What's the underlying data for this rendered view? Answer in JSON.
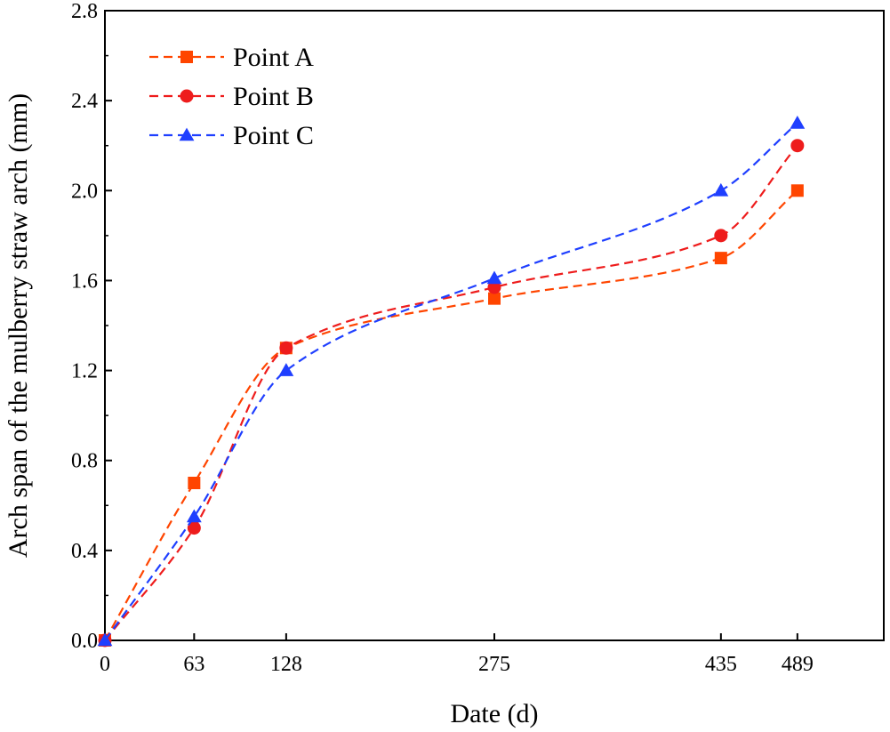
{
  "chart_data": {
    "type": "line",
    "title": "",
    "xlabel": "Date (d)",
    "ylabel": "Arch span of the mulberry straw arch  (mm)",
    "x": [
      0,
      63,
      128,
      275,
      435,
      489
    ],
    "xticks": [
      "0",
      "63",
      "128",
      "275",
      "435",
      "489"
    ],
    "xlim": [
      0,
      550
    ],
    "ylim": [
      0.0,
      2.8
    ],
    "yticks": [
      "0.0",
      "0.4",
      "0.8",
      "1.2",
      "1.6",
      "2.0",
      "2.4",
      "2.8"
    ],
    "grid": false,
    "legend_position": "top-left",
    "series": [
      {
        "name": "Point A",
        "marker": "square",
        "color": "#ff4500",
        "values": [
          0.0,
          0.7,
          1.3,
          1.52,
          1.7,
          2.0
        ]
      },
      {
        "name": "Point B",
        "marker": "circle",
        "color": "#ee1c1c",
        "values": [
          0.0,
          0.5,
          1.3,
          1.57,
          1.8,
          2.2
        ]
      },
      {
        "name": "Point C",
        "marker": "triangle",
        "color": "#1f3fff",
        "values": [
          0.0,
          0.55,
          1.2,
          1.61,
          2.0,
          2.3
        ]
      }
    ]
  }
}
